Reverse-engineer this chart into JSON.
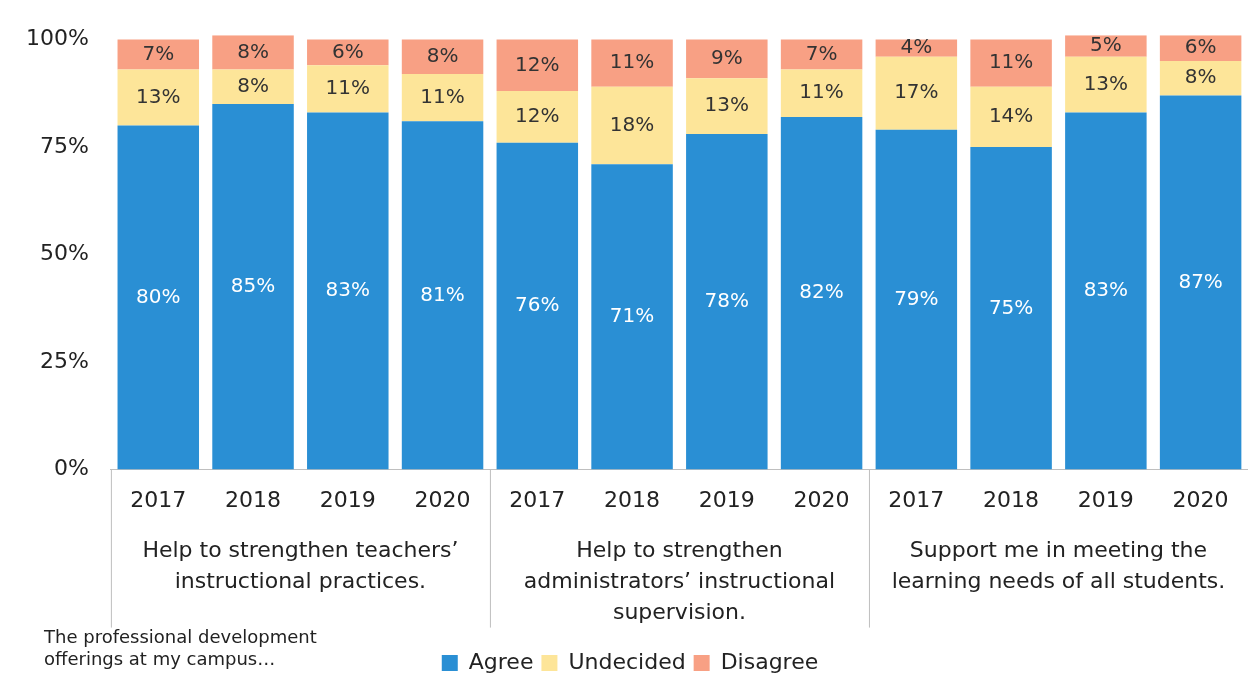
{
  "chart_data": {
    "type": "bar",
    "stacked": true,
    "categories": [
      "2017",
      "2018",
      "2019",
      "2020",
      "2017",
      "2018",
      "2019",
      "2020",
      "2017",
      "2018",
      "2019",
      "2020"
    ],
    "series": [
      {
        "name": "Agree",
        "color": "#2a8fd4",
        "values": [
          80,
          85,
          83,
          81,
          76,
          71,
          78,
          82,
          79,
          75,
          83,
          87
        ],
        "value_labels": [
          "80%",
          "85%",
          "83%",
          "81%",
          "76%",
          "71%",
          "78%",
          "82%",
          "79%",
          "75%",
          "83%",
          "87%"
        ]
      },
      {
        "name": "Undecided",
        "color": "#fde599",
        "values": [
          13,
          8,
          11,
          11,
          12,
          18,
          13,
          11,
          17,
          14,
          13,
          8
        ],
        "value_labels": [
          "13%",
          "8%",
          "11%",
          "11%",
          "12%",
          "18%",
          "13%",
          "11%",
          "17%",
          "14%",
          "13%",
          "8%"
        ]
      },
      {
        "name": "Disagree",
        "color": "#f8a084",
        "values": [
          7,
          8,
          6,
          8,
          12,
          11,
          9,
          7,
          4,
          11,
          5,
          6
        ],
        "value_labels": [
          "7%",
          "8%",
          "6%",
          "8%",
          "12%",
          "11%",
          "9%",
          "7%",
          "4%",
          "11%",
          "5%",
          "6%"
        ]
      }
    ],
    "ylim": [
      0,
      101
    ],
    "yticks": [
      {
        "value": 0,
        "label": "0%"
      },
      {
        "value": 25,
        "label": "25%"
      },
      {
        "value": 50,
        "label": "50%"
      },
      {
        "value": 75,
        "label": "75%"
      },
      {
        "value": 100,
        "label": "100%"
      }
    ],
    "grid": false,
    "legend": "bottom",
    "annotations": [
      "Help to strengthen teachers’ instructional practices.",
      "Help to strengthen administrators’ instructional supervision.",
      "Support me in meeting the learning needs of all students.",
      "The professional development offerings at my campus…"
    ]
  }
}
